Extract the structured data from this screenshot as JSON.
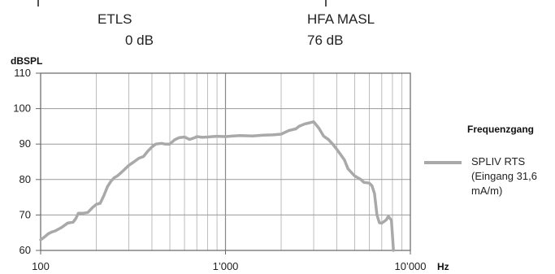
{
  "header": {
    "left_label": "ETLS",
    "left_value": "0 dB",
    "right_label": "HFA MASL",
    "right_value": "76 dB"
  },
  "chart_data": {
    "type": "line",
    "title": "",
    "ylabel": "dBSPL",
    "xlabel": "Hz",
    "xscale": "log",
    "xlim": [
      100,
      10000
    ],
    "ylim": [
      60,
      110
    ],
    "yticks": [
      60,
      70,
      80,
      90,
      100,
      110
    ],
    "xticks": [
      {
        "value": 100,
        "label": "100"
      },
      {
        "value": 1000,
        "label": "1’000"
      },
      {
        "value": 10000,
        "label": "10’000"
      }
    ],
    "grid": true,
    "legend": {
      "title": "Frequenzgang",
      "placement": "right",
      "entries": [
        "SPLIV RTS",
        "(Eingang 31,6",
        "mA/m)"
      ]
    },
    "series": [
      {
        "name": "SPLIV RTS (Eingang 31,6 mA/m)",
        "color": "#a9a9a9",
        "x": [
          100,
          105,
          110,
          115,
          120,
          130,
          140,
          150,
          155,
          160,
          170,
          180,
          190,
          200,
          210,
          220,
          230,
          240,
          250,
          260,
          280,
          300,
          320,
          340,
          360,
          380,
          400,
          420,
          450,
          470,
          500,
          530,
          560,
          600,
          640,
          680,
          700,
          750,
          800,
          850,
          900,
          1000,
          1100,
          1200,
          1400,
          1600,
          1800,
          2000,
          2200,
          2400,
          2500,
          2600,
          2700,
          2800,
          3000,
          3200,
          3400,
          3600,
          3800,
          4000,
          4200,
          4400,
          4600,
          5000,
          5400,
          5600,
          6000,
          6200,
          6400,
          6600,
          6800,
          7000,
          7400,
          7600,
          7900,
          8100
        ],
        "y": [
          63,
          63.8,
          64.7,
          65.2,
          65.5,
          66.5,
          67.7,
          68,
          69,
          70.5,
          70.5,
          70.7,
          72,
          73,
          73.3,
          75.5,
          78,
          79.5,
          80.5,
          81,
          82.5,
          84,
          85,
          86,
          86.5,
          88,
          89.2,
          90,
          90.2,
          90,
          90,
          91.2,
          91.8,
          92,
          91.3,
          91.8,
          92.1,
          91.9,
          92,
          92.1,
          92.2,
          92.1,
          92.3,
          92.4,
          92.3,
          92.5,
          92.6,
          92.8,
          93.8,
          94.3,
          95,
          95.4,
          95.7,
          95.9,
          96.3,
          94.5,
          92.2,
          91.3,
          90,
          88.5,
          87,
          85.5,
          83,
          81,
          80,
          79.2,
          79,
          78.2,
          76,
          70,
          67.8,
          67.7,
          68.6,
          69.6,
          68.5,
          60
        ]
      }
    ]
  }
}
